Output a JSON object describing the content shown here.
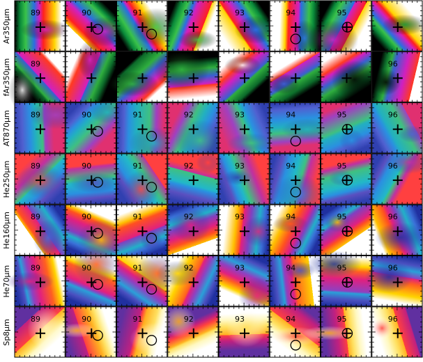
{
  "row_labels": [
    "Ar350µm",
    "fAr350µm",
    "AT870µm",
    "He250µm",
    "He160µm",
    "He70µm",
    "Sp8µm"
  ],
  "cells": [
    [
      89,
      90,
      91,
      92,
      93,
      94,
      95,
      null
    ],
    [
      89,
      null,
      null,
      null,
      null,
      null,
      null,
      96
    ],
    [
      89,
      90,
      91,
      92,
      93,
      94,
      95,
      96
    ],
    [
      89,
      90,
      91,
      92,
      93,
      94,
      95,
      96
    ],
    [
      89,
      90,
      91,
      92,
      93,
      94,
      95,
      96
    ],
    [
      89,
      90,
      91,
      92,
      93,
      94,
      95,
      96
    ],
    [
      89,
      90,
      91,
      92,
      93,
      94,
      95,
      96
    ]
  ]
}
